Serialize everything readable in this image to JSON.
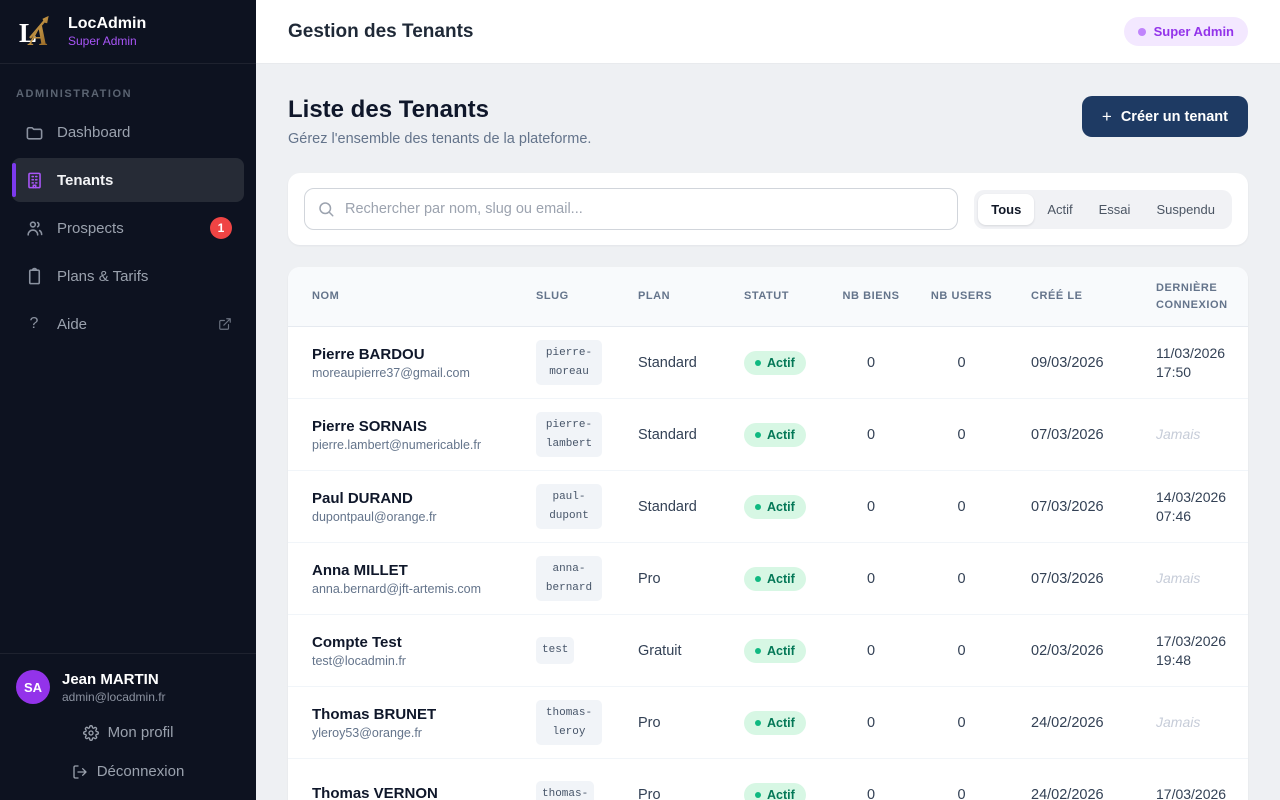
{
  "brand": {
    "name": "LocAdmin",
    "subtitle": "Super Admin"
  },
  "sidebar": {
    "section_label": "ADMINISTRATION",
    "items": [
      {
        "label": "Dashboard",
        "icon": "folder-icon"
      },
      {
        "label": "Tenants",
        "icon": "building-icon"
      },
      {
        "label": "Prospects",
        "icon": "users-icon",
        "badge": "1"
      },
      {
        "label": "Plans & Tarifs",
        "icon": "clipboard-icon"
      },
      {
        "label": "Aide",
        "icon": "help-icon"
      }
    ],
    "user": {
      "initials": "SA",
      "name": "Jean MARTIN",
      "email": "admin@locadmin.fr",
      "profile_label": "Mon profil",
      "logout_label": "Déconnexion"
    }
  },
  "header": {
    "title": "Gestion des Tenants",
    "role_badge": "Super Admin"
  },
  "page": {
    "title": "Liste des Tenants",
    "subtitle": "Gérez l'ensemble des tenants de la plateforme.",
    "create_button": "Créer un tenant",
    "plus_glyph": "+"
  },
  "search": {
    "placeholder": "Rechercher par nom, slug ou email...",
    "filters": [
      "Tous",
      "Actif",
      "Essai",
      "Suspendu"
    ],
    "active_filter": "Tous"
  },
  "table": {
    "columns": [
      "Nom",
      "Slug",
      "Plan",
      "Statut",
      "NB Biens",
      "NB Users",
      "Créé le",
      "Dernière connexion"
    ],
    "rows": [
      {
        "name": "Pierre BARDOU",
        "email": "moreaupierre37@gmail.com",
        "slug": "pierre-moreau",
        "plan": "Standard",
        "status": "Actif",
        "nb_biens": "0",
        "nb_users": "0",
        "created": "09/03/2026",
        "last_line1": "11/03/2026",
        "last_line2": "17:50",
        "last_italic": false
      },
      {
        "name": "Pierre SORNAIS",
        "email": "pierre.lambert@numericable.fr",
        "slug": "pierre-lambert",
        "plan": "Standard",
        "status": "Actif",
        "nb_biens": "0",
        "nb_users": "0",
        "created": "07/03/2026",
        "last_line1": "Jamais",
        "last_line2": "",
        "last_italic": true
      },
      {
        "name": "Paul DURAND",
        "email": "dupontpaul@orange.fr",
        "slug": "paul-dupont",
        "plan": "Standard",
        "status": "Actif",
        "nb_biens": "0",
        "nb_users": "0",
        "created": "07/03/2026",
        "last_line1": "14/03/2026",
        "last_line2": "07:46",
        "last_italic": false
      },
      {
        "name": "Anna MILLET",
        "email": "anna.bernard@jft-artemis.com",
        "slug": "anna-bernard",
        "plan": "Pro",
        "status": "Actif",
        "nb_biens": "0",
        "nb_users": "0",
        "created": "07/03/2026",
        "last_line1": "Jamais",
        "last_line2": "",
        "last_italic": true
      },
      {
        "name": "Compte Test",
        "email": "test@locadmin.fr",
        "slug": "test",
        "plan": "Gratuit",
        "status": "Actif",
        "nb_biens": "0",
        "nb_users": "0",
        "created": "02/03/2026",
        "last_line1": "17/03/2026",
        "last_line2": "19:48",
        "last_italic": false
      },
      {
        "name": "Thomas BRUNET",
        "email": "yleroy53@orange.fr",
        "slug": "thomas-leroy",
        "plan": "Pro",
        "status": "Actif",
        "nb_biens": "0",
        "nb_users": "0",
        "created": "24/02/2026",
        "last_line1": "Jamais",
        "last_line2": "",
        "last_italic": true
      },
      {
        "name": "Thomas VERNON",
        "email": "",
        "slug": "thomas-",
        "plan": "Pro",
        "status": "Actif",
        "nb_biens": "0",
        "nb_users": "0",
        "created": "24/02/2026",
        "last_line1": "17/03/2026",
        "last_line2": "",
        "last_italic": false
      }
    ]
  },
  "colors": {
    "sidebar_bg": "#0d1220",
    "accent_purple": "#a855f7",
    "brand_navy": "#1e3a63",
    "badge_red": "#ef4444",
    "status_green_bg": "#d7f7e4",
    "status_green_text": "#047857",
    "role_pill_bg": "#f3e8ff",
    "role_pill_text": "#9333ea",
    "content_bg": "#eef0f3"
  }
}
